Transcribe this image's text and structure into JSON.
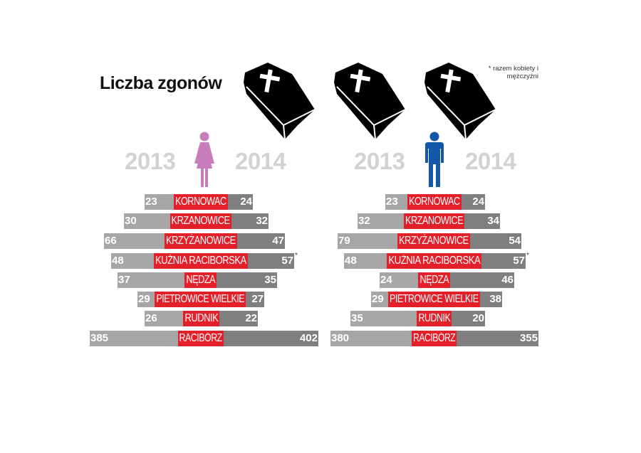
{
  "title": "Liczba zgonów",
  "footnote": "* razem kobiety i mężczyźni",
  "icons": [
    "coffin-icon",
    "coffin-icon",
    "coffin-icon",
    "female-icon",
    "male-icon"
  ],
  "colors": {
    "female": "#c77dbb",
    "male": "#1257a8",
    "label_bg": "#e3202a",
    "bar_2013": "#a6a6a6",
    "bar_2014": "#7f7f7f",
    "year": "#d2d2d2"
  },
  "chart_data": [
    {
      "type": "bar",
      "group": "female",
      "years": [
        "2013",
        "2014"
      ],
      "categories": [
        "KORNOWAC",
        "KRZANOWICE",
        "KRZYŻANOWICE",
        "KUŹNIA RACIBORSKA",
        "NĘDZA",
        "PIETROWICE WIELKIE",
        "RUDNIK",
        "RACIBÓRZ"
      ],
      "series": [
        {
          "name": "2013",
          "values": [
            "23",
            "30",
            "66",
            "48",
            "37",
            "29",
            "26",
            "385"
          ]
        },
        {
          "name": "2014",
          "values": [
            "24",
            "32",
            "47",
            "57",
            "35",
            "27",
            "22",
            "402"
          ]
        }
      ],
      "annotations": [
        "*"
      ]
    },
    {
      "type": "bar",
      "group": "male",
      "years": [
        "2013",
        "2014"
      ],
      "categories": [
        "KORNOWAC",
        "KRZANOWICE",
        "KRZYŻANOWICE",
        "KUŹNIA RACIBORSKA",
        "NĘDZA",
        "PIETROWICE WIELKIE",
        "RUDNIK",
        "RACIBÓRZ"
      ],
      "series": [
        {
          "name": "2013",
          "values": [
            "23",
            "32",
            "79",
            "48",
            "24",
            "29",
            "35",
            "380"
          ]
        },
        {
          "name": "2014",
          "values": [
            "24",
            "34",
            "54",
            "57",
            "46",
            "38",
            "20",
            "355"
          ]
        }
      ],
      "annotations": [
        "*"
      ]
    }
  ]
}
